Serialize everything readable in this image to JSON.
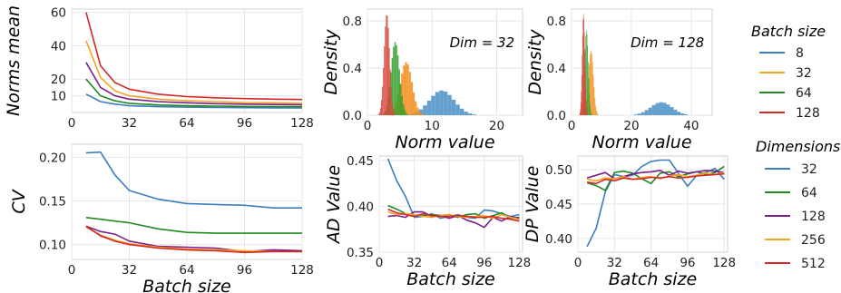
{
  "colors": {
    "blue": "#3b7dbf",
    "orange": "#f5a524",
    "green": "#1f8a1f",
    "red": "#d62728",
    "purple": "#7b1f8c",
    "hist_blue": "#4f93c7",
    "hist_orange": "#f28e1c",
    "hist_green": "#33a02c",
    "hist_red": "#d8453a"
  },
  "legend_batch": {
    "title": "Batch size",
    "items": [
      {
        "label": "8",
        "color": "#3b7dbf"
      },
      {
        "label": "32",
        "color": "#f5a524"
      },
      {
        "label": "64",
        "color": "#1f8a1f"
      },
      {
        "label": "128",
        "color": "#d62728"
      }
    ]
  },
  "legend_dim": {
    "title": "Dimensions",
    "items": [
      {
        "label": "32",
        "color": "#3b7dbf"
      },
      {
        "label": "64",
        "color": "#1f8a1f"
      },
      {
        "label": "128",
        "color": "#7b1f8c"
      },
      {
        "label": "256",
        "color": "#f5a524"
      },
      {
        "label": "512",
        "color": "#d62728"
      }
    ]
  },
  "chart_data": [
    {
      "id": "norms",
      "type": "line",
      "xlabel": "",
      "ylabel": "Norms mean",
      "xlim": [
        0,
        128
      ],
      "ylim": [
        0,
        62
      ],
      "xticks": [
        0,
        32,
        64,
        96,
        128
      ],
      "yticks": [
        10,
        20,
        40,
        60
      ],
      "grid": true,
      "x": [
        8,
        16,
        24,
        32,
        48,
        64,
        80,
        96,
        112,
        128
      ],
      "series": [
        {
          "name": "8",
          "color": "#3b7dbf",
          "values": [
            11,
            6.5,
            5,
            4,
            3.5,
            3.2,
            3,
            2.9,
            2.8,
            2.7
          ]
        },
        {
          "name": "32",
          "color": "#f5a524",
          "values": [
            43,
            21,
            13,
            10,
            8,
            7,
            6.5,
            6,
            5.8,
            5.5
          ]
        },
        {
          "name": "64",
          "color": "#1f8a1f",
          "values": [
            20,
            10,
            7,
            5.5,
            4.5,
            4,
            3.8,
            3.6,
            3.5,
            3.4
          ]
        },
        {
          "name": "",
          "color": "#7b1f8c",
          "values": [
            30,
            15,
            10,
            8,
            6.5,
            5.8,
            5.3,
            5,
            4.8,
            4.6
          ]
        },
        {
          "name": "128",
          "color": "#d62728",
          "values": [
            60,
            28,
            18,
            14,
            11,
            9.5,
            8.8,
            8.3,
            8,
            7.8
          ]
        }
      ]
    },
    {
      "id": "cv",
      "type": "line",
      "xlabel": "Batch size",
      "ylabel": "CV",
      "xlim": [
        0,
        128
      ],
      "ylim": [
        0.083,
        0.215
      ],
      "xticks": [
        0,
        32,
        64,
        96,
        128
      ],
      "yticks": [
        0.1,
        0.15,
        0.2
      ],
      "ytick_labels": [
        "0.10",
        "0.15",
        "0.20"
      ],
      "grid": true,
      "x": [
        8,
        16,
        24,
        32,
        48,
        64,
        80,
        96,
        112,
        128
      ],
      "series": [
        {
          "name": "32",
          "color": "#3b7dbf",
          "values": [
            0.205,
            0.206,
            0.18,
            0.162,
            0.152,
            0.147,
            0.146,
            0.145,
            0.142,
            0.142
          ]
        },
        {
          "name": "64",
          "color": "#1f8a1f",
          "values": [
            0.131,
            0.129,
            0.127,
            0.125,
            0.118,
            0.114,
            0.113,
            0.113,
            0.113,
            0.113
          ]
        },
        {
          "name": "128",
          "color": "#7b1f8c",
          "values": [
            0.121,
            0.115,
            0.112,
            0.104,
            0.098,
            0.097,
            0.096,
            0.092,
            0.094,
            0.093
          ]
        },
        {
          "name": "256",
          "color": "#f5a524",
          "values": [
            0.12,
            0.111,
            0.105,
            0.101,
            0.097,
            0.095,
            0.094,
            0.093,
            0.092,
            0.092
          ]
        },
        {
          "name": "512",
          "color": "#d62728",
          "values": [
            0.121,
            0.11,
            0.104,
            0.1,
            0.096,
            0.094,
            0.093,
            0.091,
            0.092,
            0.092
          ]
        }
      ]
    },
    {
      "id": "hist32",
      "type": "histogram",
      "xlabel": "Norm value",
      "ylabel": "Density",
      "annotation": "Dim = 32",
      "xlim": [
        0,
        24
      ],
      "ylim": [
        0,
        0.9
      ],
      "xticks": [
        0,
        10,
        20
      ],
      "yticks": [
        0.0,
        0.4,
        0.8
      ],
      "ytick_labels": [
        "0.0",
        "0.4",
        "0.8"
      ],
      "grid": true,
      "series": [
        {
          "name": "8",
          "color": "#4f93c7",
          "mean": 11.5,
          "sd": 1.9,
          "peak": 0.21
        },
        {
          "name": "32",
          "color": "#f28e1c",
          "mean": 6.0,
          "sd": 0.9,
          "peak": 0.45
        },
        {
          "name": "64",
          "color": "#33a02c",
          "mean": 4.3,
          "sd": 0.65,
          "peak": 0.62
        },
        {
          "name": "128",
          "color": "#d8453a",
          "mean": 3.0,
          "sd": 0.42,
          "peak": 0.86
        }
      ]
    },
    {
      "id": "hist128",
      "type": "histogram",
      "xlabel": "Norm value",
      "ylabel": "Density",
      "annotation": "Dim = 128",
      "xlim": [
        0,
        47
      ],
      "ylim": [
        0,
        0.9
      ],
      "xticks": [
        0,
        20,
        40
      ],
      "yticks": [
        0.0,
        0.4,
        0.8
      ],
      "ytick_labels": [
        "0.0",
        "0.4",
        "0.8"
      ],
      "grid": true,
      "series": [
        {
          "name": "8",
          "color": "#4f93c7",
          "mean": 30.0,
          "sd": 3.6,
          "peak": 0.11
        },
        {
          "name": "32",
          "color": "#f28e1c",
          "mean": 6.5,
          "sd": 0.8,
          "peak": 0.55
        },
        {
          "name": "64",
          "color": "#33a02c",
          "mean": 5.0,
          "sd": 0.6,
          "peak": 0.72
        },
        {
          "name": "128",
          "color": "#d8453a",
          "mean": 4.0,
          "sd": 0.45,
          "peak": 0.86
        }
      ]
    },
    {
      "id": "ad",
      "type": "line",
      "xlabel": "Batch size",
      "ylabel": "AD Value",
      "xlim": [
        0,
        131
      ],
      "ylim": [
        0.35,
        0.455
      ],
      "xticks": [
        0,
        32,
        64,
        96,
        128
      ],
      "yticks": [
        0.35,
        0.4,
        0.45
      ],
      "ytick_labels": [
        "0.35",
        "0.40",
        "0.45"
      ],
      "grid": true,
      "x": [
        8,
        16,
        24,
        32,
        40,
        48,
        56,
        64,
        72,
        80,
        88,
        96,
        104,
        112,
        120,
        128
      ],
      "series": [
        {
          "name": "32",
          "color": "#3b7dbf",
          "values": [
            0.452,
            0.428,
            0.411,
            0.388,
            0.389,
            0.392,
            0.387,
            0.389,
            0.391,
            0.388,
            0.387,
            0.396,
            0.395,
            0.392,
            0.389,
            0.391
          ]
        },
        {
          "name": "64",
          "color": "#1f8a1f",
          "values": [
            0.401,
            0.397,
            0.392,
            0.39,
            0.39,
            0.391,
            0.39,
            0.391,
            0.388,
            0.391,
            0.392,
            0.387,
            0.39,
            0.393,
            0.387,
            0.388
          ]
        },
        {
          "name": "128",
          "color": "#7b1f8c",
          "values": [
            0.389,
            0.39,
            0.388,
            0.394,
            0.394,
            0.389,
            0.39,
            0.387,
            0.39,
            0.385,
            0.382,
            0.377,
            0.388,
            0.384,
            0.389,
            0.387
          ]
        },
        {
          "name": "256",
          "color": "#f5a524",
          "values": [
            0.394,
            0.391,
            0.392,
            0.391,
            0.389,
            0.388,
            0.39,
            0.391,
            0.389,
            0.388,
            0.389,
            0.39,
            0.387,
            0.391,
            0.388,
            0.386
          ]
        },
        {
          "name": "512",
          "color": "#d62728",
          "values": [
            0.397,
            0.393,
            0.391,
            0.389,
            0.392,
            0.39,
            0.389,
            0.389,
            0.39,
            0.389,
            0.388,
            0.388,
            0.389,
            0.387,
            0.386,
            0.384
          ]
        }
      ]
    },
    {
      "id": "dp",
      "type": "line",
      "xlabel": "Batch size",
      "ylabel": "DP Value",
      "xlim": [
        0,
        131
      ],
      "ylim": [
        0.38,
        0.52
      ],
      "xticks": [
        0,
        32,
        64,
        96,
        128
      ],
      "yticks": [
        0.4,
        0.45,
        0.5
      ],
      "ytick_labels": [
        "0.40",
        "0.45",
        "0.50"
      ],
      "grid": true,
      "x": [
        8,
        16,
        24,
        32,
        40,
        48,
        56,
        64,
        72,
        80,
        88,
        96,
        104,
        112,
        120,
        128
      ],
      "series": [
        {
          "name": "32",
          "color": "#3b7dbf",
          "values": [
            0.388,
            0.415,
            0.468,
            0.493,
            0.49,
            0.492,
            0.505,
            0.512,
            0.514,
            0.514,
            0.495,
            0.476,
            0.492,
            0.496,
            0.502,
            0.486
          ]
        },
        {
          "name": "64",
          "color": "#1f8a1f",
          "values": [
            0.481,
            0.477,
            0.47,
            0.496,
            0.498,
            0.495,
            0.487,
            0.48,
            0.495,
            0.497,
            0.49,
            0.494,
            0.497,
            0.493,
            0.496,
            0.505
          ]
        },
        {
          "name": "128",
          "color": "#7b1f8c",
          "values": [
            0.488,
            0.492,
            0.496,
            0.487,
            0.49,
            0.494,
            0.496,
            0.497,
            0.499,
            0.492,
            0.498,
            0.495,
            0.497,
            0.499,
            0.498,
            0.496
          ]
        },
        {
          "name": "256",
          "color": "#f5a524",
          "values": [
            0.486,
            0.484,
            0.488,
            0.487,
            0.49,
            0.486,
            0.489,
            0.49,
            0.487,
            0.491,
            0.493,
            0.49,
            0.492,
            0.495,
            0.493,
            0.496
          ]
        },
        {
          "name": "512",
          "color": "#d62728",
          "values": [
            0.482,
            0.48,
            0.486,
            0.484,
            0.488,
            0.486,
            0.487,
            0.489,
            0.488,
            0.49,
            0.488,
            0.489,
            0.491,
            0.492,
            0.493,
            0.494
          ]
        }
      ]
    }
  ]
}
